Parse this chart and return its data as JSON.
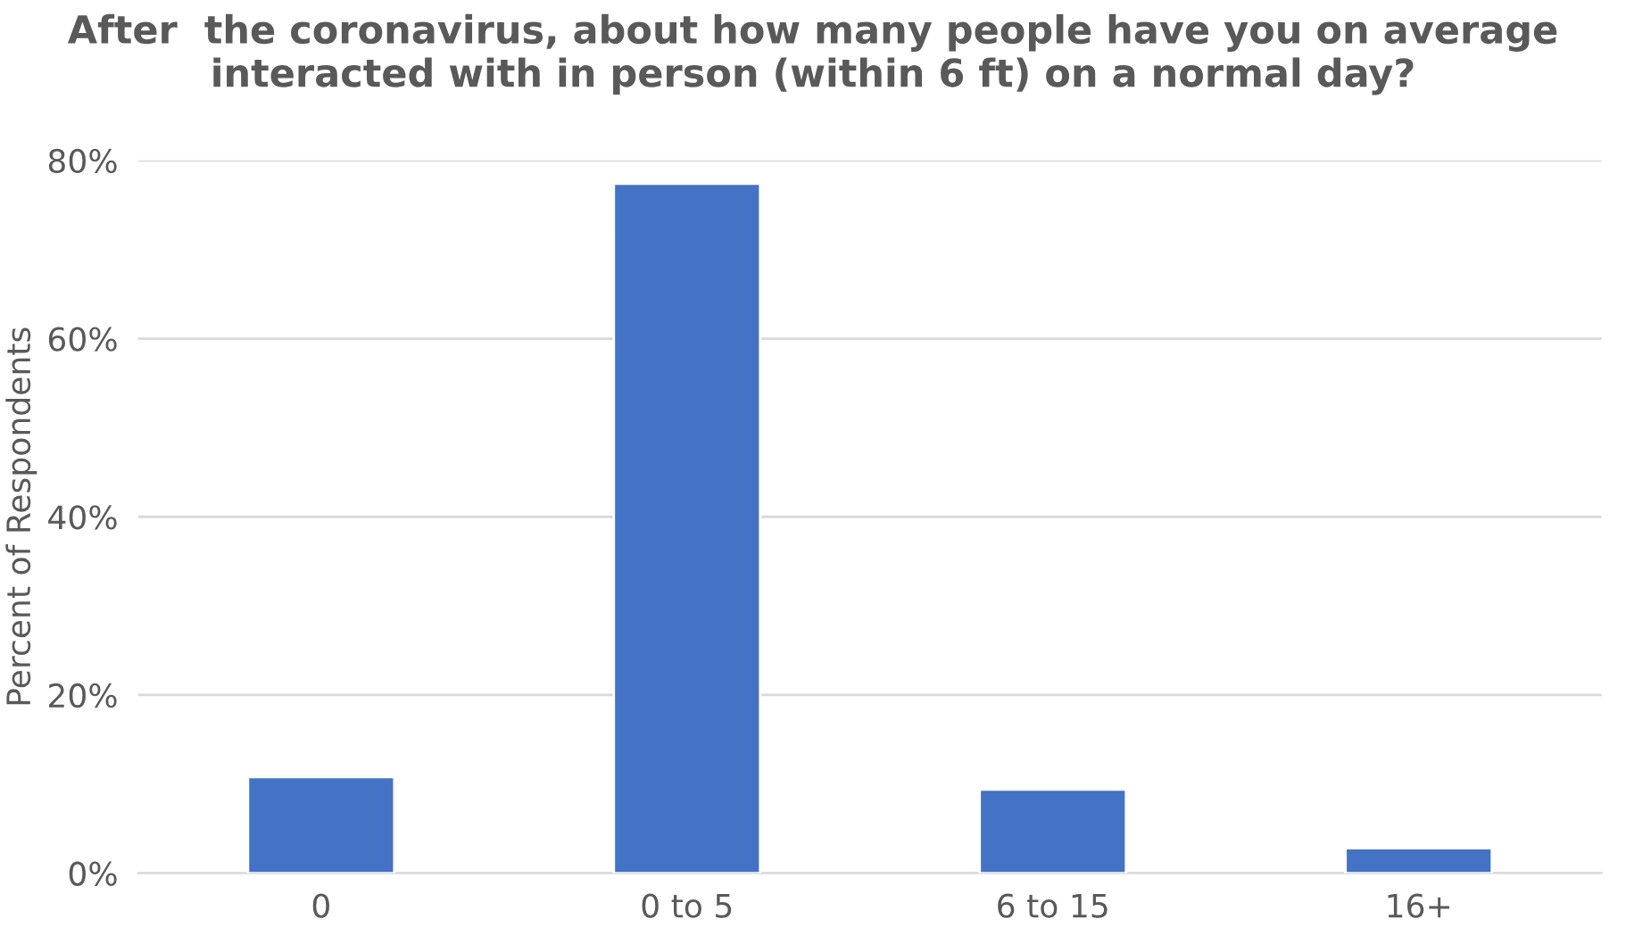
{
  "chart_data": {
    "type": "bar",
    "title": "After  the coronavirus, about how many people have you on average interacted with in person (within 6 ft) on a normal day?",
    "ylabel": "Percent of Respondents",
    "categories": [
      "0",
      "0 to 5",
      "6 to 15",
      "16+"
    ],
    "values": [
      10.8,
      77.4,
      9.4,
      2.8
    ],
    "color": "#4472c4",
    "ylim": [
      0,
      80
    ],
    "yticks": [
      {
        "value": 0,
        "label": "0%"
      },
      {
        "value": 20,
        "label": "20%"
      },
      {
        "value": 40,
        "label": "40%"
      },
      {
        "value": 60,
        "label": "60%"
      },
      {
        "value": 80,
        "label": "80%"
      }
    ],
    "grid": "y"
  }
}
